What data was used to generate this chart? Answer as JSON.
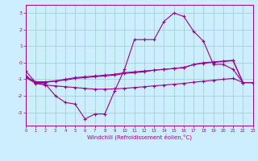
{
  "xlabel": "Windchill (Refroidissement éolien,°C)",
  "bg_color": "#cceeff",
  "line_color": "#990099",
  "grid_color": "#99cccc",
  "hours": [
    0,
    1,
    2,
    3,
    4,
    5,
    6,
    7,
    8,
    9,
    10,
    11,
    12,
    13,
    14,
    15,
    16,
    17,
    18,
    19,
    20,
    21,
    22,
    23
  ],
  "line1": [
    -0.5,
    -1.2,
    -1.3,
    -2.0,
    -2.4,
    -2.5,
    -3.4,
    -3.1,
    -3.1,
    -1.7,
    -0.4,
    1.4,
    1.4,
    1.4,
    2.5,
    3.0,
    2.8,
    1.9,
    1.3,
    -0.1,
    -0.1,
    -0.4,
    -1.2,
    -1.2
  ],
  "line2": [
    -0.8,
    -1.2,
    -1.2,
    -1.1,
    -1.0,
    -0.9,
    -0.85,
    -0.8,
    -0.75,
    -0.7,
    -0.6,
    -0.55,
    -0.5,
    -0.45,
    -0.4,
    -0.35,
    -0.3,
    -0.1,
    0.0,
    0.05,
    0.1,
    0.15,
    -1.2,
    -1.2
  ],
  "line3": [
    -0.85,
    -1.15,
    -1.15,
    -1.1,
    -1.05,
    -0.95,
    -0.9,
    -0.85,
    -0.8,
    -0.75,
    -0.65,
    -0.6,
    -0.55,
    -0.45,
    -0.4,
    -0.35,
    -0.28,
    -0.12,
    -0.03,
    0.02,
    0.07,
    0.12,
    -1.2,
    -1.2
  ],
  "line4": [
    -0.9,
    -1.25,
    -1.35,
    -1.4,
    -1.45,
    -1.5,
    -1.55,
    -1.6,
    -1.6,
    -1.58,
    -1.55,
    -1.5,
    -1.45,
    -1.4,
    -1.35,
    -1.3,
    -1.25,
    -1.18,
    -1.12,
    -1.06,
    -1.0,
    -0.95,
    -1.2,
    -1.2
  ],
  "xlim": [
    0,
    23
  ],
  "ylim": [
    -3.8,
    3.5
  ],
  "yticks": [
    -3,
    -2,
    -1,
    0,
    1,
    2,
    3
  ],
  "xticks": [
    0,
    1,
    2,
    3,
    4,
    5,
    6,
    7,
    8,
    9,
    10,
    11,
    12,
    13,
    14,
    15,
    16,
    17,
    18,
    19,
    20,
    21,
    22,
    23
  ]
}
